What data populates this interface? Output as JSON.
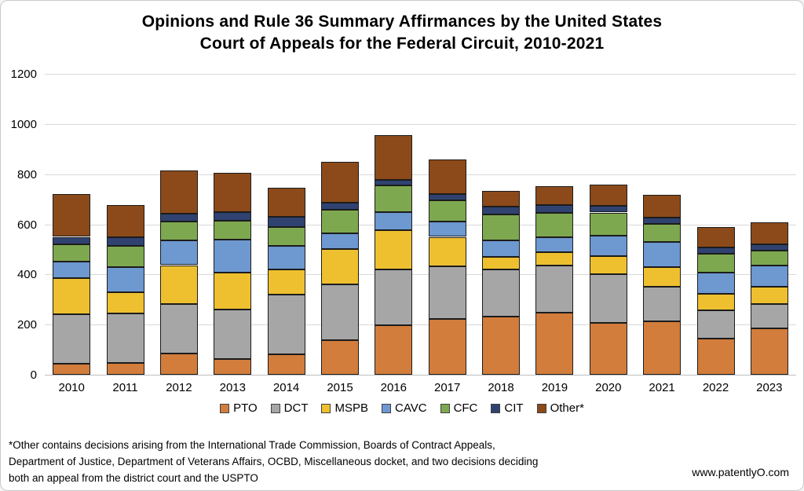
{
  "title": {
    "line1": "Opinions and Rule 36 Summary Affirmances by the United States",
    "line2": "Court of Appeals for the Federal Circuit, 2010-2021"
  },
  "footnote": {
    "line1": "*Other contains decisions arising from the International Trade Commission, Boards of Contract Appeals,",
    "line2": "Department of Justice, Department of Veterans Affairs,  OCBD, Miscellaneous docket, and two decisions deciding",
    "line3": "both an appeal from the district court and the USPTO"
  },
  "watermark": "www.patentlyO.com",
  "colors": {
    "grid": "#d9d9d9",
    "axis": "#bfbfbf",
    "bar_border": "#1c1c1c"
  },
  "chart_data": {
    "type": "bar",
    "stacked": true,
    "title": "Opinions and Rule 36 Summary Affirmances by the United States Court of Appeals for the Federal Circuit, 2010-2021",
    "categories": [
      "2010",
      "2011",
      "2012",
      "2013",
      "2014",
      "2015",
      "2016",
      "2017",
      "2018",
      "2019",
      "2020",
      "2021",
      "2022",
      "2023"
    ],
    "series": [
      {
        "name": "PTO",
        "color": "#d27d3c",
        "values": [
          44,
          48,
          85,
          62,
          82,
          138,
          198,
          224,
          231,
          247,
          207,
          213,
          145,
          185
        ]
      },
      {
        "name": "DCT",
        "color": "#a6a6a6",
        "values": [
          196,
          197,
          197,
          198,
          238,
          222,
          222,
          210,
          190,
          189,
          193,
          139,
          113,
          96
        ]
      },
      {
        "name": "MSPB",
        "color": "#eec030",
        "values": [
          145,
          85,
          155,
          148,
          100,
          140,
          157,
          116,
          49,
          54,
          74,
          77,
          65,
          69
        ]
      },
      {
        "name": "CAVC",
        "color": "#6d98d0",
        "values": [
          65,
          100,
          100,
          132,
          95,
          65,
          72,
          62,
          65,
          58,
          82,
          102,
          83,
          85
        ]
      },
      {
        "name": "CFC",
        "color": "#7ea850",
        "values": [
          70,
          85,
          73,
          75,
          75,
          94,
          106,
          85,
          104,
          97,
          91,
          71,
          78,
          60
        ]
      },
      {
        "name": "CIT",
        "color": "#2f4270",
        "values": [
          30,
          33,
          33,
          33,
          41,
          26,
          21,
          25,
          32,
          31,
          28,
          24,
          24,
          24
        ]
      },
      {
        "name": "Other*",
        "color": "#8c4a1a",
        "values": [
          170,
          130,
          172,
          157,
          114,
          165,
          179,
          138,
          61,
          77,
          83,
          91,
          82,
          88
        ]
      }
    ],
    "totals": [
      720,
      678,
      815,
      805,
      745,
      850,
      955,
      860,
      732,
      753,
      758,
      717,
      590,
      607
    ],
    "ylabel": "",
    "xlabel": "",
    "ylim": [
      0,
      1200
    ],
    "y_ticks": [
      0,
      200,
      400,
      600,
      800,
      1000,
      1200
    ],
    "grid": true,
    "legend_position": "bottom"
  }
}
